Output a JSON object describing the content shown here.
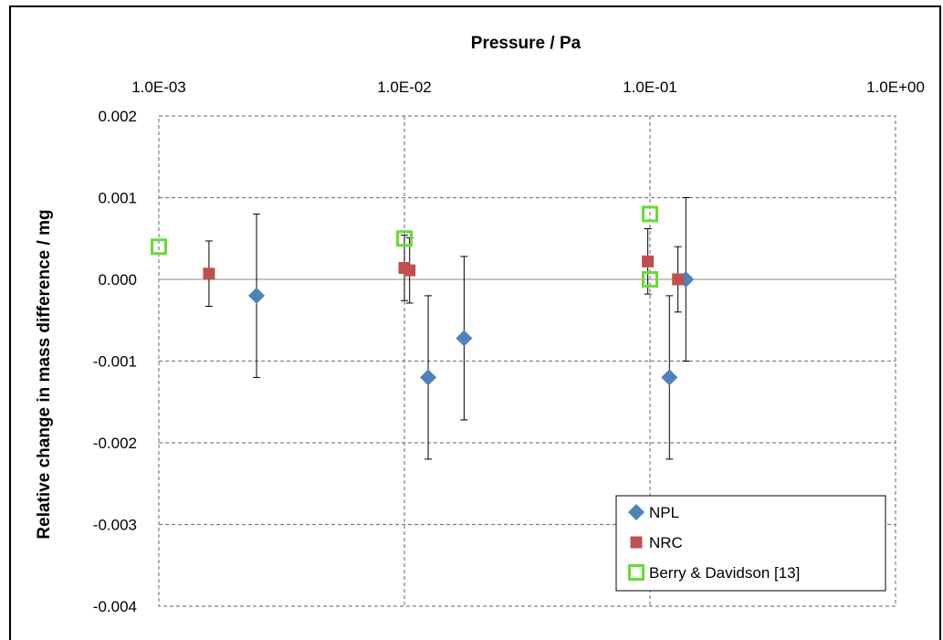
{
  "chart_data": {
    "type": "scatter",
    "title": "Pressure / Pa",
    "xlabel": "Pressure / Pa",
    "ylabel": "Relative change in  mass difference / mg",
    "x_scale": "log",
    "x_axis_position": "top",
    "xlim": [
      0.001,
      1.0
    ],
    "ylim": [
      -0.004,
      0.002
    ],
    "x_tick_labels": [
      "1.0E-03",
      "1.0E-02",
      "1.0E-01",
      "1.0E+00"
    ],
    "x_tick_values": [
      0.001,
      0.01,
      0.1,
      1.0
    ],
    "y_tick_labels": [
      "0.002",
      "0.001",
      "0.000",
      "-0.001",
      "-0.002",
      "-0.003",
      "-0.004"
    ],
    "y_tick_values": [
      0.002,
      0.001,
      0.0,
      -0.001,
      -0.002,
      -0.003,
      -0.004
    ],
    "grid": true,
    "legend_position": "bottom-right",
    "series": [
      {
        "name": "NPL",
        "color": "#4F81BD",
        "marker": "diamond",
        "points": [
          {
            "x": 0.0025,
            "y": -0.0002,
            "err": 0.001
          },
          {
            "x": 0.0125,
            "y": -0.0012,
            "err": 0.001
          },
          {
            "x": 0.0175,
            "y": -0.00072,
            "err": 0.001
          },
          {
            "x": 0.12,
            "y": -0.0012,
            "err": 0.001
          },
          {
            "x": 0.14,
            "y": 0.0,
            "err": 0.001
          }
        ]
      },
      {
        "name": "NRC",
        "color": "#C0504D",
        "marker": "square",
        "points": [
          {
            "x": 0.0016,
            "y": 7e-05,
            "err": 0.0004
          },
          {
            "x": 0.01,
            "y": 0.00014,
            "err": 0.0004
          },
          {
            "x": 0.0105,
            "y": 0.00011,
            "err": 0.0004
          },
          {
            "x": 0.098,
            "y": 0.00022,
            "err": 0.0004
          },
          {
            "x": 0.13,
            "y": 0.0,
            "err": 0.0004
          }
        ]
      },
      {
        "name": "Berry & Davidson [13]",
        "color": "#66DD33",
        "marker": "hollow-square",
        "points": [
          {
            "x": 0.001,
            "y": 0.0004
          },
          {
            "x": 0.01,
            "y": 0.0005
          },
          {
            "x": 0.1,
            "y": 0.0008
          },
          {
            "x": 0.1,
            "y": 0.0
          }
        ]
      }
    ]
  }
}
